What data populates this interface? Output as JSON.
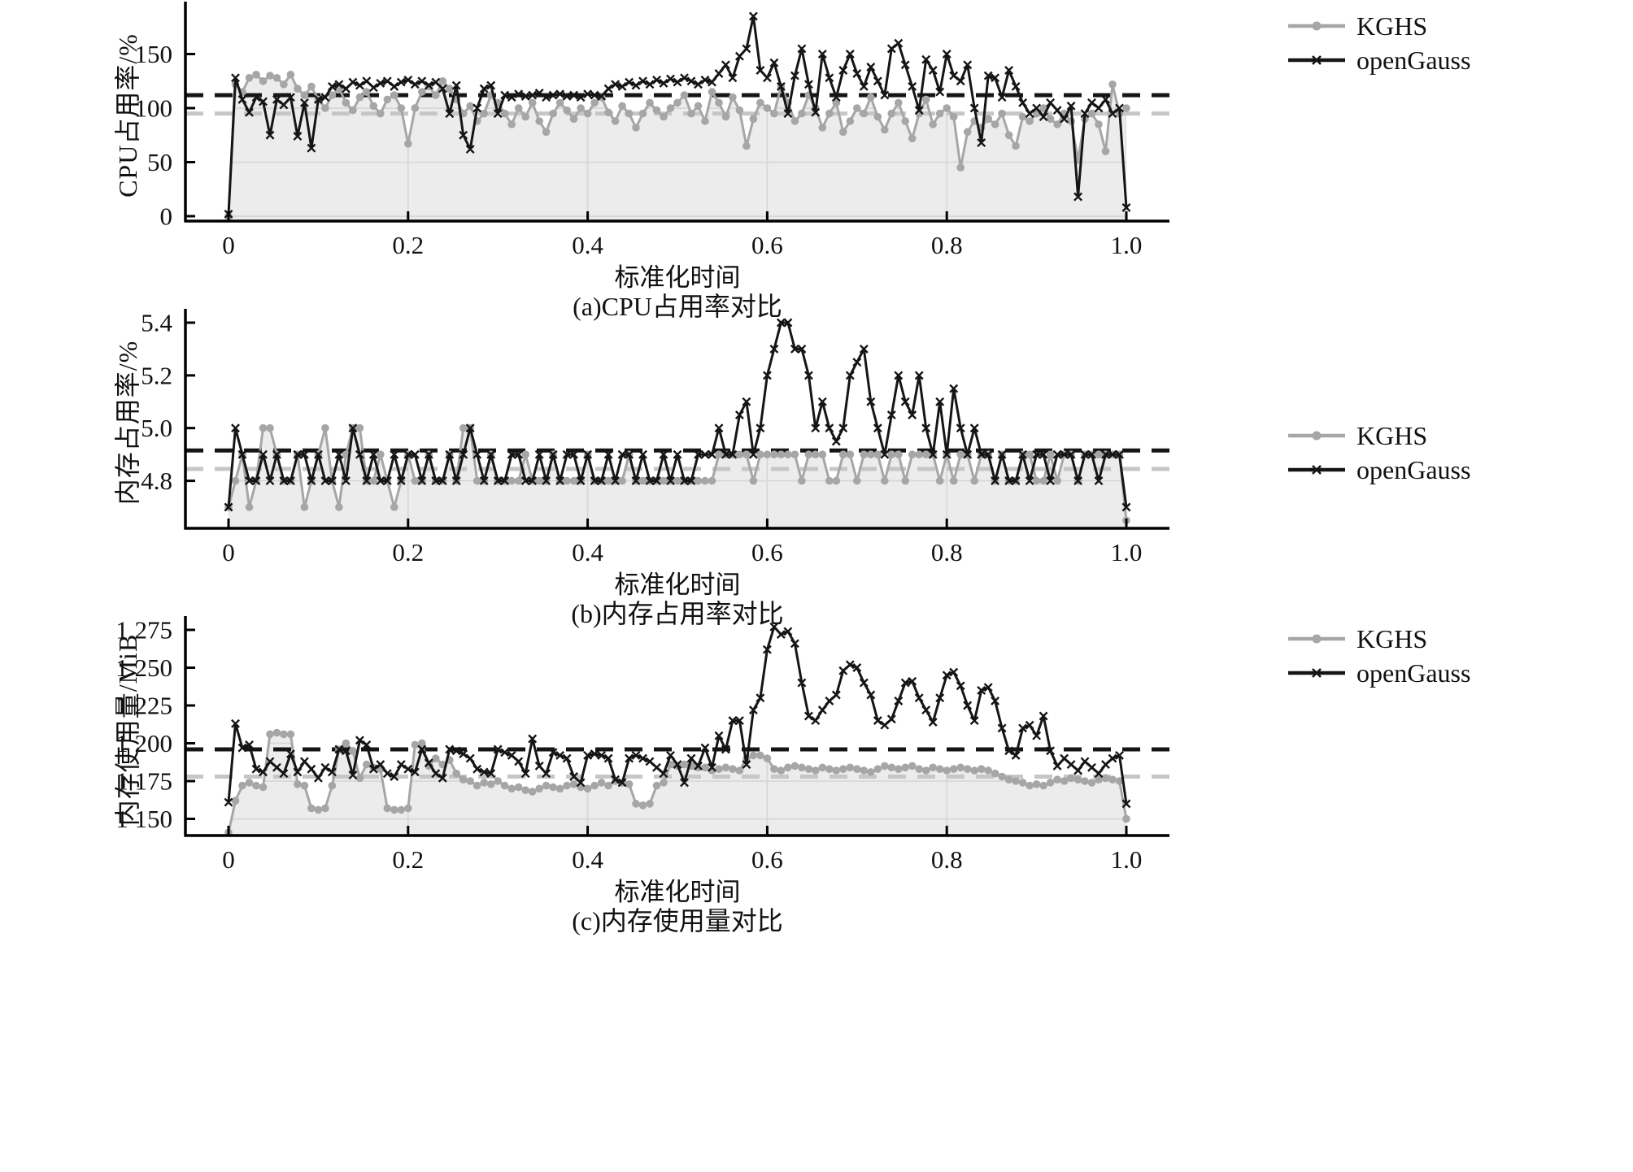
{
  "page": {
    "background": "#ffffff"
  },
  "chart_data": [
    {
      "type": "line",
      "caption": "(a)CPU占用率对比",
      "xlabel": "标准化时间",
      "ylabel": "CPU占用率/%",
      "x_ticks": [
        "0",
        "0.2",
        "0.4",
        "0.6",
        "0.8",
        "1.0"
      ],
      "y_ticks": [
        0,
        50,
        100,
        150
      ],
      "y_tick_labels": [
        "0",
        "50",
        "100",
        "150"
      ],
      "ylim": [
        -4.5,
        195.5
      ],
      "xlim": [
        0,
        1
      ],
      "grid": true,
      "legend_position": "outside-top-right",
      "fill_under": "KGHS",
      "fill_color": "#ececec",
      "grid_color": "#d6d6d6",
      "series": [
        {
          "name": "KGHS",
          "role": "kghs",
          "color": "#a6a6a6",
          "marker": "circle",
          "mean": 95,
          "mean_color": "#c6c6c6",
          "values": [
            0,
            122,
            115,
            128,
            131,
            125,
            130,
            128,
            122,
            131,
            118,
            112,
            120,
            108,
            100,
            112,
            118,
            105,
            98,
            110,
            115,
            102,
            95,
            108,
            112,
            100,
            67,
            100,
            115,
            120,
            112,
            125,
            118,
            108,
            95,
            102,
            88,
            95,
            112,
            105,
            95,
            85,
            100,
            92,
            105,
            88,
            78,
            95,
            105,
            98,
            90,
            100,
            95,
            105,
            110,
            96,
            88,
            102,
            95,
            82,
            95,
            105,
            98,
            92,
            100,
            105,
            112,
            95,
            102,
            88,
            115,
            105,
            92,
            110,
            98,
            65,
            90,
            105,
            100,
            95,
            120,
            105,
            88,
            95,
            112,
            100,
            82,
            95,
            105,
            78,
            88,
            100,
            95,
            110,
            92,
            80,
            95,
            105,
            88,
            72,
            95,
            108,
            85,
            95,
            100,
            92,
            45,
            78,
            88,
            82,
            90,
            85,
            95,
            75,
            65,
            92,
            88,
            95,
            100,
            90,
            85,
            95,
            88,
            52,
            90,
            95,
            85,
            60,
            122,
            95,
            100
          ]
        },
        {
          "name": "openGauss",
          "role": "opengauss",
          "color": "#151515",
          "marker": "x",
          "mean": 112,
          "mean_color": "#151515",
          "values": [
            2,
            128,
            108,
            96,
            110,
            106,
            75,
            108,
            103,
            110,
            74,
            105,
            63,
            108,
            110,
            120,
            122,
            118,
            124,
            121,
            125,
            119,
            123,
            125,
            120,
            124,
            126,
            122,
            125,
            121,
            124,
            118,
            95,
            121,
            75,
            62,
            100,
            118,
            121,
            95,
            112,
            110,
            113,
            111,
            112,
            114,
            110,
            112,
            113,
            111,
            112,
            110,
            113,
            112,
            111,
            118,
            122,
            120,
            124,
            121,
            125,
            122,
            126,
            123,
            127,
            124,
            128,
            125,
            122,
            126,
            124,
            132,
            140,
            128,
            148,
            155,
            185,
            135,
            128,
            142,
            120,
            95,
            130,
            155,
            122,
            96,
            150,
            128,
            110,
            135,
            150,
            132,
            120,
            138,
            125,
            112,
            155,
            160,
            140,
            120,
            98,
            145,
            135,
            115,
            150,
            130,
            125,
            140,
            100,
            68,
            130,
            128,
            110,
            135,
            120,
            105,
            95,
            100,
            92,
            105,
            98,
            90,
            102,
            18,
            95,
            105,
            100,
            108,
            95,
            100,
            8
          ]
        }
      ]
    },
    {
      "type": "line",
      "caption": "(b)内存占用率对比",
      "xlabel": "标准化时间",
      "ylabel": "内存占用率/%",
      "x_ticks": [
        "0",
        "0.2",
        "0.4",
        "0.6",
        "0.8",
        "1.0"
      ],
      "y_ticks": [
        4.8,
        5.0,
        5.2,
        5.4
      ],
      "y_tick_labels": [
        "4.8",
        "5.0",
        "5.2",
        "5.4"
      ],
      "ylim": [
        4.62,
        5.44
      ],
      "xlim": [
        0,
        1
      ],
      "grid": true,
      "legend_position": "outside-upper-right",
      "fill_under": "KGHS",
      "fill_color": "#ececec",
      "grid_color": "#d6d6d6",
      "series": [
        {
          "name": "KGHS",
          "role": "kghs",
          "color": "#a6a6a6",
          "marker": "circle",
          "mean": 4.845,
          "mean_color": "#c6c6c6",
          "values": [
            4.7,
            4.8,
            4.9,
            4.7,
            4.8,
            5.0,
            5.0,
            4.9,
            4.8,
            4.8,
            4.9,
            4.7,
            4.8,
            4.9,
            5.0,
            4.8,
            4.7,
            4.9,
            5.0,
            5.0,
            4.8,
            4.8,
            4.9,
            4.8,
            4.7,
            4.8,
            4.9,
            4.8,
            4.8,
            4.9,
            4.8,
            4.8,
            4.9,
            4.8,
            5.0,
            5.0,
            4.8,
            4.8,
            4.9,
            4.8,
            4.8,
            4.8,
            4.8,
            4.9,
            4.8,
            4.8,
            4.8,
            4.9,
            4.8,
            4.8,
            4.8,
            4.8,
            4.9,
            4.8,
            4.8,
            4.8,
            4.8,
            4.8,
            4.9,
            4.8,
            4.8,
            4.8,
            4.8,
            4.8,
            4.8,
            4.8,
            4.8,
            4.8,
            4.8,
            4.8,
            4.8,
            4.9,
            4.9,
            4.9,
            4.9,
            4.9,
            4.8,
            4.9,
            4.9,
            4.9,
            4.9,
            4.9,
            4.9,
            4.8,
            4.9,
            4.9,
            4.9,
            4.8,
            4.8,
            4.9,
            4.9,
            4.8,
            4.9,
            4.9,
            4.9,
            4.8,
            4.9,
            4.9,
            4.8,
            4.9,
            4.9,
            4.9,
            4.9,
            4.8,
            4.9,
            4.8,
            4.9,
            4.9,
            4.8,
            4.9,
            4.9,
            4.8,
            4.9,
            4.8,
            4.8,
            4.9,
            4.9,
            4.8,
            4.8,
            4.9,
            4.8,
            4.9,
            4.9,
            4.8,
            4.9,
            4.9,
            4.9,
            4.9,
            4.9,
            4.9,
            4.65
          ]
        },
        {
          "name": "openGauss",
          "role": "opengauss",
          "color": "#151515",
          "marker": "x",
          "mean": 4.915,
          "mean_color": "#151515",
          "values": [
            4.7,
            5.0,
            4.9,
            4.8,
            4.8,
            4.9,
            4.8,
            4.9,
            4.8,
            4.8,
            4.9,
            4.9,
            4.8,
            4.9,
            4.8,
            4.8,
            4.9,
            4.8,
            5.0,
            4.9,
            4.8,
            4.9,
            4.8,
            4.8,
            4.9,
            4.8,
            4.9,
            4.9,
            4.8,
            4.9,
            4.8,
            4.8,
            4.9,
            4.8,
            4.9,
            5.0,
            4.9,
            4.8,
            4.9,
            4.8,
            4.8,
            4.9,
            4.9,
            4.8,
            4.8,
            4.9,
            4.8,
            4.9,
            4.8,
            4.9,
            4.9,
            4.8,
            4.9,
            4.8,
            4.8,
            4.9,
            4.8,
            4.9,
            4.9,
            4.8,
            4.9,
            4.8,
            4.8,
            4.9,
            4.8,
            4.9,
            4.8,
            4.8,
            4.9,
            4.9,
            4.9,
            5.0,
            4.9,
            4.9,
            5.05,
            5.1,
            4.9,
            5.0,
            5.2,
            5.3,
            5.4,
            5.4,
            5.3,
            5.3,
            5.2,
            5.0,
            5.1,
            5.0,
            4.95,
            5.0,
            5.2,
            5.25,
            5.3,
            5.1,
            5.0,
            4.9,
            5.05,
            5.2,
            5.1,
            5.05,
            5.2,
            5.0,
            4.9,
            5.1,
            4.9,
            5.15,
            5.0,
            4.9,
            5.0,
            4.9,
            4.9,
            4.8,
            4.9,
            4.8,
            4.8,
            4.9,
            4.8,
            4.9,
            4.9,
            4.8,
            4.9,
            4.9,
            4.9,
            4.8,
            4.9,
            4.9,
            4.8,
            4.9,
            4.9,
            4.9,
            4.7
          ]
        }
      ]
    },
    {
      "type": "line",
      "caption": "(c)内存使用量对比",
      "xlabel": "标准化时间",
      "ylabel": "内存使用量/MiB",
      "x_ticks": [
        "0",
        "0.2",
        "0.4",
        "0.6",
        "0.8",
        "1.0"
      ],
      "y_ticks": [
        1150,
        1175,
        1200,
        1225,
        1250,
        1275
      ],
      "y_tick_labels": [
        "1 150",
        "1 175",
        "1 200",
        "1 225",
        "1 250",
        "1 275"
      ],
      "ylim": [
        1139,
        1282
      ],
      "xlim": [
        0,
        1
      ],
      "grid": true,
      "legend_position": "outside-top-right",
      "fill_under": "KGHS",
      "fill_color": "#ececec",
      "grid_color": "#d6d6d6",
      "series": [
        {
          "name": "KGHS",
          "role": "kghs",
          "color": "#a6a6a6",
          "marker": "circle",
          "mean": 1178,
          "mean_color": "#c6c6c6",
          "values": [
            1141,
            1162,
            1172,
            1174,
            1172,
            1171,
            1206,
            1207,
            1206,
            1206,
            1173,
            1172,
            1157,
            1156,
            1157,
            1172,
            1196,
            1200,
            1195,
            1177,
            1186,
            1184,
            1183,
            1157,
            1156,
            1156,
            1157,
            1199,
            1200,
            1185,
            1190,
            1186,
            1189,
            1180,
            1176,
            1175,
            1172,
            1174,
            1173,
            1175,
            1172,
            1170,
            1171,
            1169,
            1168,
            1170,
            1172,
            1171,
            1170,
            1172,
            1173,
            1171,
            1170,
            1172,
            1174,
            1172,
            1175,
            1174,
            1173,
            1160,
            1159,
            1160,
            1172,
            1174,
            1186,
            1185,
            1186,
            1185,
            1184,
            1184,
            1182,
            1183,
            1184,
            1183,
            1182,
            1190,
            1192,
            1192,
            1190,
            1183,
            1182,
            1184,
            1185,
            1184,
            1183,
            1182,
            1184,
            1183,
            1182,
            1183,
            1184,
            1183,
            1182,
            1181,
            1183,
            1185,
            1184,
            1183,
            1184,
            1185,
            1183,
            1182,
            1184,
            1183,
            1182,
            1183,
            1184,
            1183,
            1182,
            1183,
            1182,
            1180,
            1178,
            1176,
            1175,
            1174,
            1172,
            1173,
            1172,
            1174,
            1176,
            1175,
            1177,
            1176,
            1175,
            1174,
            1176,
            1177,
            1176,
            1175,
            1150
          ]
        },
        {
          "name": "openGauss",
          "role": "opengauss",
          "color": "#151515",
          "marker": "x",
          "mean": 1196,
          "mean_color": "#151515",
          "values": [
            1161,
            1213,
            1197,
            1199,
            1183,
            1181,
            1188,
            1184,
            1180,
            1193,
            1181,
            1188,
            1183,
            1177,
            1184,
            1181,
            1196,
            1195,
            1179,
            1202,
            1199,
            1183,
            1186,
            1180,
            1178,
            1186,
            1183,
            1181,
            1196,
            1187,
            1180,
            1177,
            1196,
            1195,
            1193,
            1190,
            1183,
            1181,
            1180,
            1196,
            1194,
            1192,
            1188,
            1180,
            1203,
            1185,
            1180,
            1194,
            1192,
            1190,
            1178,
            1174,
            1192,
            1193,
            1192,
            1190,
            1176,
            1174,
            1190,
            1192,
            1190,
            1188,
            1184,
            1180,
            1192,
            1186,
            1174,
            1190,
            1185,
            1197,
            1184,
            1205,
            1196,
            1215,
            1215,
            1186,
            1222,
            1230,
            1262,
            1277,
            1272,
            1274,
            1266,
            1240,
            1218,
            1215,
            1222,
            1228,
            1232,
            1248,
            1252,
            1250,
            1240,
            1232,
            1215,
            1212,
            1216,
            1228,
            1240,
            1241,
            1230,
            1222,
            1214,
            1230,
            1245,
            1247,
            1238,
            1225,
            1215,
            1235,
            1237,
            1228,
            1210,
            1195,
            1192,
            1210,
            1212,
            1205,
            1218,
            1195,
            1185,
            1190,
            1186,
            1182,
            1188,
            1184,
            1180,
            1186,
            1190,
            1192,
            1160
          ]
        }
      ]
    }
  ]
}
